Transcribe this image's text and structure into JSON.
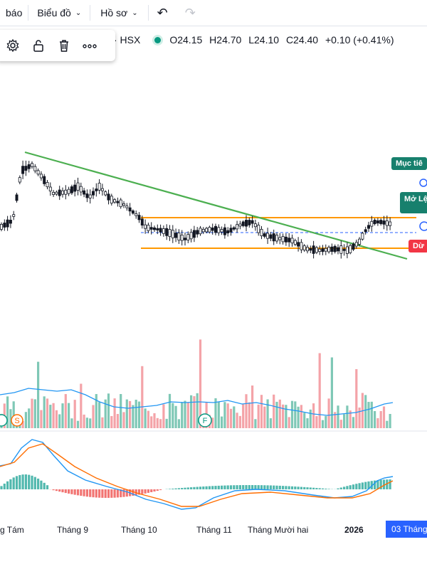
{
  "topbar": {
    "cut_label": "báo",
    "chart_menu": "Biểu đồ",
    "profile_menu": "Hồ sơ",
    "undo_icon": "undo-icon",
    "redo_icon": "redo-icon"
  },
  "drawing_toolbar": {
    "icons": [
      "gear-icon",
      "lock-icon",
      "trash-icon",
      "more-icon"
    ]
  },
  "legend": {
    "exchange": "· HSX",
    "open": "O24.15",
    "high": "H24.70",
    "low": "L24.10",
    "close": "C24.40",
    "change": "+0.10 (+0.41%)",
    "status_color": "#089981"
  },
  "price_tags": {
    "target": "Mục tiê",
    "open_position": "Mở Lệ",
    "stop": "Dừ"
  },
  "time_axis": {
    "labels": [
      "g Tám",
      "Tháng 9",
      "Tháng 10",
      "Tháng 11",
      "Tháng Mười hai",
      "2026"
    ],
    "cursor": "03 Tháng"
  },
  "colors": {
    "up": "#089981",
    "down": "#f23645",
    "trendline": "#4caf50",
    "range": "#ff9800",
    "ma": "#2196f3",
    "signal": "#ff6d00"
  },
  "markers": {
    "sell": "S",
    "buy": "F"
  }
}
